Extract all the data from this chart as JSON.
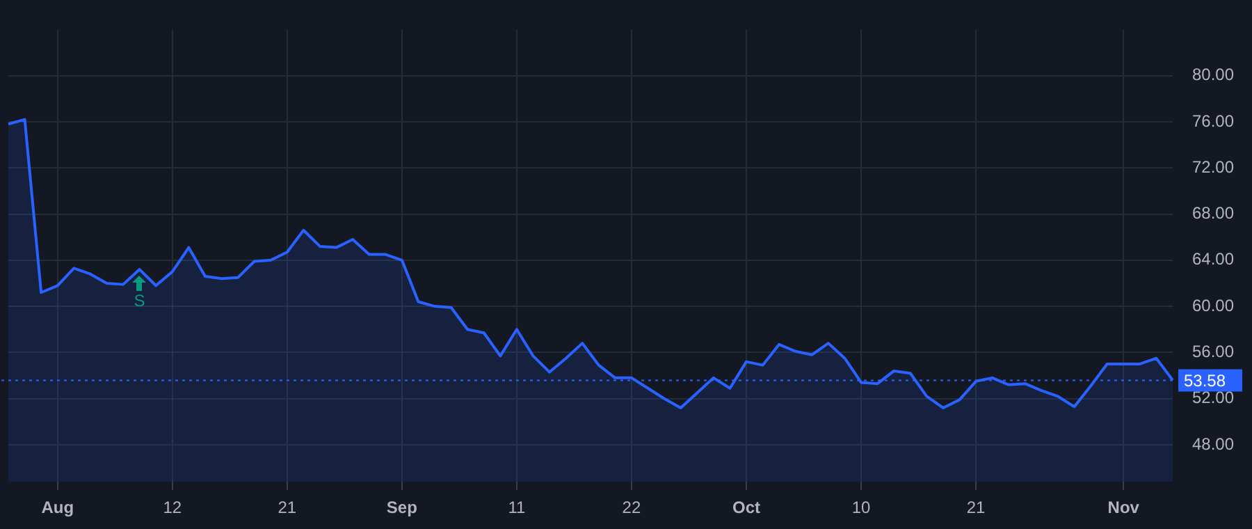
{
  "chart_data": {
    "type": "area",
    "categories": [
      null,
      null,
      null,
      "Aug",
      null,
      null,
      null,
      null,
      null,
      null,
      "12",
      null,
      null,
      null,
      null,
      null,
      null,
      "21",
      null,
      null,
      null,
      null,
      null,
      null,
      "Sep",
      null,
      null,
      null,
      null,
      null,
      null,
      "11",
      null,
      null,
      null,
      null,
      null,
      null,
      "22",
      null,
      null,
      null,
      null,
      null,
      null,
      "Oct",
      null,
      null,
      null,
      null,
      null,
      null,
      "10",
      null,
      null,
      null,
      null,
      null,
      null,
      "21",
      null,
      null,
      null,
      null,
      null,
      null,
      null,
      null,
      "Nov",
      null,
      null,
      null
    ],
    "series": [
      {
        "color": "#2962ff",
        "values": [
          75.8,
          76.2,
          61.2,
          61.8,
          63.3,
          62.8,
          62.0,
          61.9,
          63.2,
          61.8,
          63.0,
          65.1,
          62.6,
          62.4,
          62.5,
          63.9,
          64.0,
          64.7,
          66.6,
          65.2,
          65.1,
          65.8,
          64.5,
          64.5,
          64.0,
          60.4,
          60.0,
          59.9,
          58.0,
          57.7,
          55.7,
          58.0,
          55.7,
          54.3,
          55.5,
          56.8,
          54.9,
          53.8,
          53.8,
          52.9,
          52.0,
          51.2,
          52.5,
          53.8,
          52.9,
          55.2,
          54.9,
          56.7,
          56.1,
          55.8,
          56.8,
          55.5,
          53.4,
          53.3,
          54.4,
          54.2,
          52.2,
          51.2,
          51.9,
          53.5,
          53.8,
          53.2,
          53.3,
          52.7,
          52.2,
          51.3,
          53.1,
          55.0,
          55.0,
          55.0,
          55.5,
          53.6
        ]
      }
    ],
    "ylim": [
      44.8,
      84
    ],
    "yticks": [
      {
        "value": 48,
        "label": "48.00"
      },
      {
        "value": 52,
        "label": "52.00"
      },
      {
        "value": 56,
        "label": "56.00"
      },
      {
        "value": 60,
        "label": "60.00"
      },
      {
        "value": 64,
        "label": "64.00"
      },
      {
        "value": 68,
        "label": "68.00"
      },
      {
        "value": 72,
        "label": "72.00"
      },
      {
        "value": 76,
        "label": "76.00"
      },
      {
        "value": 80,
        "label": "80.00"
      }
    ],
    "grid": true,
    "marker": "none",
    "line_style": "solid",
    "ref_lines": [
      {
        "axis": "y",
        "value": 53.58,
        "label": "53.58",
        "color": "#2962ff",
        "line_style": "dotted"
      }
    ],
    "annotations": [
      {
        "text": "S",
        "y": 63.2
      }
    ]
  }
}
